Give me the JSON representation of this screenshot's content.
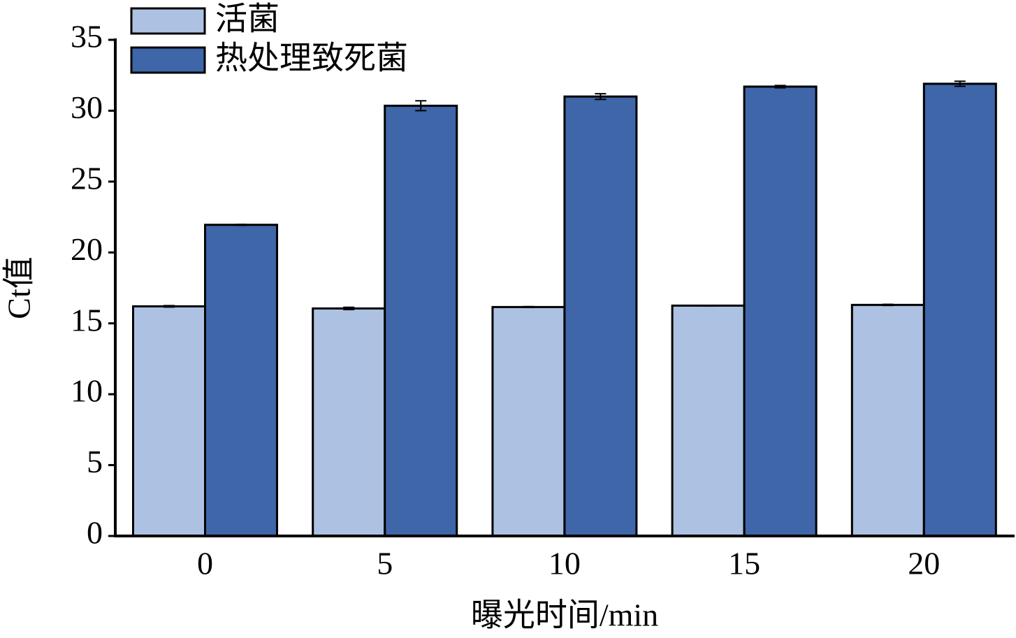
{
  "chart_data": {
    "type": "bar",
    "x_label": "曝光时间/min",
    "y_label": "Ct值",
    "categories": [
      "0",
      "5",
      "10",
      "15",
      "20"
    ],
    "series": [
      {
        "name": "活菌",
        "color": "#adc2e2",
        "values": [
          16.2,
          16.05,
          16.15,
          16.25,
          16.3
        ],
        "errors": [
          0.05,
          0.08,
          0.03,
          0.02,
          0.04
        ]
      },
      {
        "name": "热处理致死菌",
        "color": "#3e66a8",
        "values": [
          21.95,
          30.35,
          31.0,
          31.7,
          31.9
        ],
        "errors": [
          0.03,
          0.35,
          0.2,
          0.08,
          0.18
        ]
      }
    ],
    "ylim": [
      0,
      35
    ],
    "yticks": [
      0,
      5,
      10,
      15,
      20,
      25,
      30,
      35
    ],
    "legend": "upper left",
    "grid": false
  }
}
